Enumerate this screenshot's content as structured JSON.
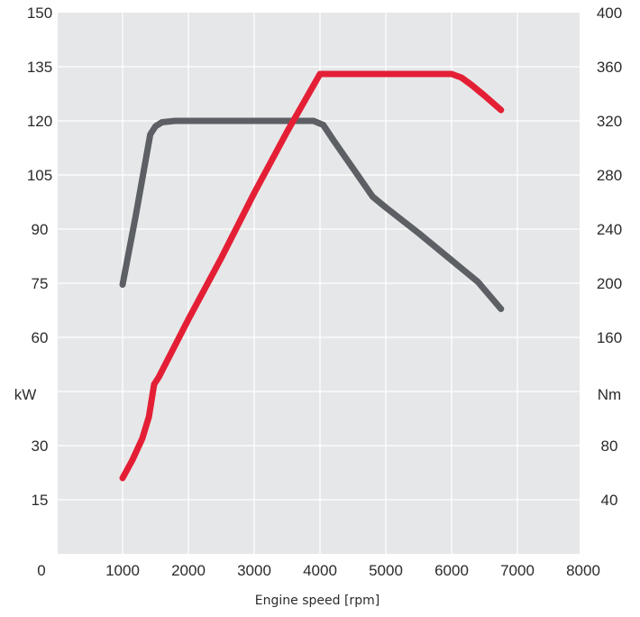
{
  "chart_data": {
    "type": "line",
    "xlabel": "Engine speed [rpm]",
    "x_ticks": [
      "1000",
      "2000",
      "3000",
      "4000",
      "5000",
      "6000",
      "7000",
      "8000"
    ],
    "xlim": [
      0,
      8000
    ],
    "origin_label": "0",
    "y_left": {
      "unit_label": "kW",
      "ylim": [
        0,
        150
      ],
      "ticks": [
        {
          "value": 150,
          "label": "150"
        },
        {
          "value": 135,
          "label": "135"
        },
        {
          "value": 120,
          "label": "120"
        },
        {
          "value": 105,
          "label": "105"
        },
        {
          "value": 90,
          "label": "90"
        },
        {
          "value": 75,
          "label": "75"
        },
        {
          "value": 60,
          "label": "60"
        },
        {
          "value": 30,
          "label": "30"
        },
        {
          "value": 15,
          "label": "15"
        }
      ]
    },
    "y_right": {
      "unit_label": "Nm",
      "ylim": [
        0,
        400
      ],
      "ticks": [
        {
          "value": 400,
          "label": "400"
        },
        {
          "value": 360,
          "label": "360"
        },
        {
          "value": 320,
          "label": "320"
        },
        {
          "value": 280,
          "label": "280"
        },
        {
          "value": 240,
          "label": "240"
        },
        {
          "value": 200,
          "label": "200"
        },
        {
          "value": 160,
          "label": "160"
        },
        {
          "value": 80,
          "label": "80"
        },
        {
          "value": 40,
          "label": "40"
        }
      ]
    },
    "grid": true,
    "series": [
      {
        "axis": "left",
        "color": "#e41f35",
        "points": [
          [
            1000,
            21
          ],
          [
            1150,
            26
          ],
          [
            1300,
            32
          ],
          [
            1400,
            38
          ],
          [
            1480,
            47
          ],
          [
            1550,
            49
          ],
          [
            2000,
            65
          ],
          [
            2500,
            82
          ],
          [
            3000,
            100
          ],
          [
            3500,
            117
          ],
          [
            4000,
            133
          ],
          [
            4500,
            133
          ],
          [
            5000,
            133
          ],
          [
            5500,
            133
          ],
          [
            6000,
            133
          ],
          [
            6150,
            132
          ],
          [
            6300,
            130
          ],
          [
            6500,
            127
          ],
          [
            6750,
            123
          ]
        ]
      },
      {
        "axis": "right",
        "color": "#5c5f63",
        "points": [
          [
            1000,
            199
          ],
          [
            1200,
            250
          ],
          [
            1420,
            310
          ],
          [
            1500,
            316
          ],
          [
            1600,
            319
          ],
          [
            1800,
            320
          ],
          [
            2500,
            320
          ],
          [
            3000,
            320
          ],
          [
            3600,
            320
          ],
          [
            3900,
            320
          ],
          [
            4050,
            317
          ],
          [
            4200,
            306
          ],
          [
            4500,
            285
          ],
          [
            4800,
            264
          ],
          [
            5000,
            256
          ],
          [
            5500,
            237
          ],
          [
            6000,
            217
          ],
          [
            6400,
            201
          ],
          [
            6750,
            181
          ]
        ]
      }
    ]
  }
}
